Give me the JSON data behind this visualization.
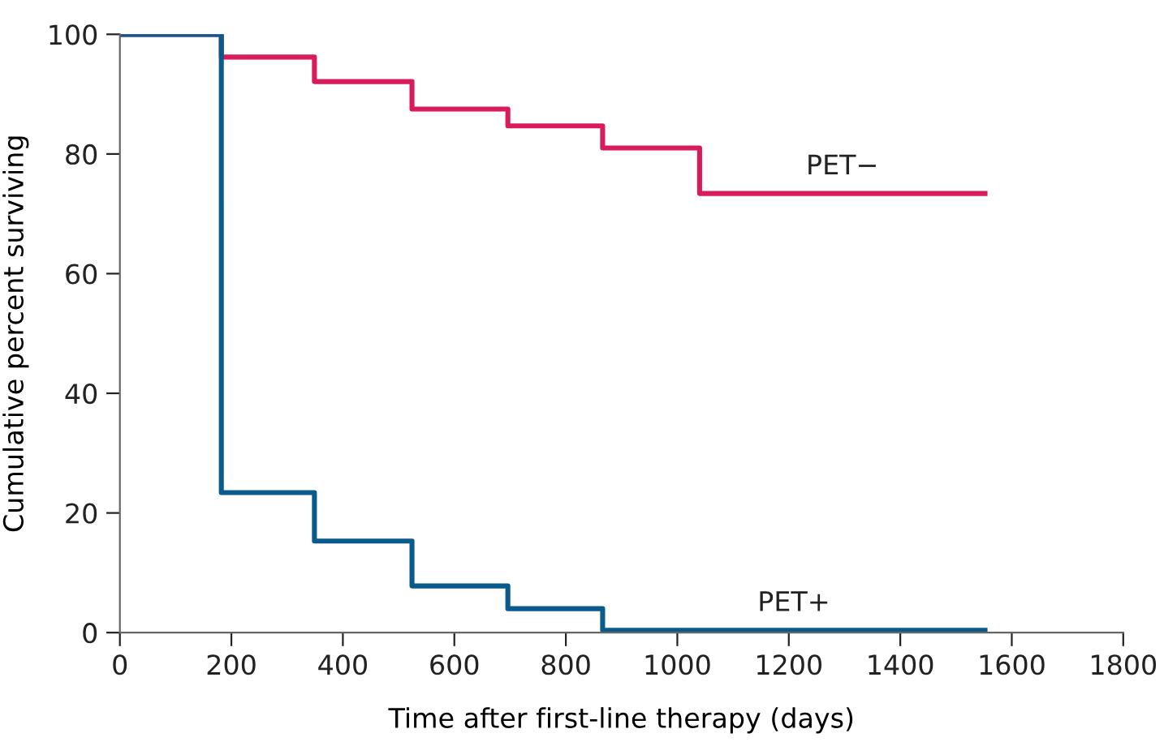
{
  "chart_data": {
    "type": "step",
    "xlabel": "Time after first-line therapy (days)",
    "ylabel": "Cumulative percent surviving",
    "xlim": [
      0,
      1800
    ],
    "xticks": [
      0,
      200,
      400,
      600,
      800,
      1000,
      1200,
      1400,
      1600,
      1800
    ],
    "ylim": [
      0,
      100
    ],
    "yticks": [
      0,
      20,
      40,
      60,
      80,
      100
    ],
    "grid": false,
    "legend": false,
    "series": [
      {
        "name": "PET−",
        "color": "#d81b5a",
        "x": [
          0,
          182,
          349,
          524,
          696,
          866,
          1040,
          1552
        ],
        "values": [
          100,
          96.2,
          92.1,
          87.5,
          84.7,
          81.0,
          73.4,
          73.4
        ]
      },
      {
        "name": "PET+",
        "color": "#0a5a8c",
        "x": [
          0,
          182,
          349,
          524,
          696,
          866,
          1552
        ],
        "values": [
          100,
          23.4,
          15.3,
          7.8,
          4.0,
          0.4,
          0.4
        ]
      }
    ]
  }
}
